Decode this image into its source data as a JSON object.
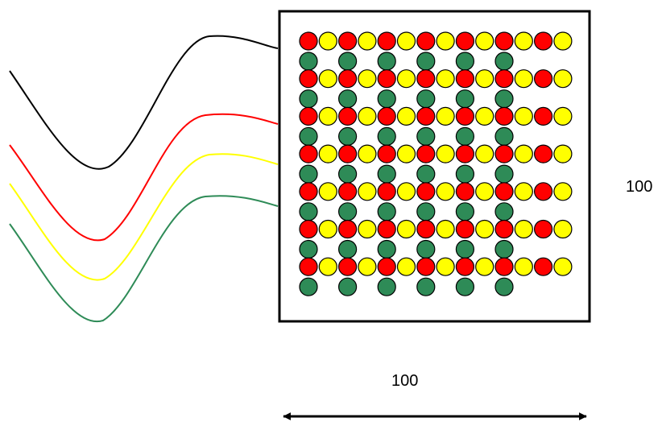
{
  "labels": {
    "height": "100",
    "width": "100"
  },
  "colors": {
    "background": "#ffffff",
    "frame": "#000000",
    "dot_red": "#ff0000",
    "dot_yellow": "#ffff00",
    "dot_green": "#2e8b57",
    "wave_black": "#000000",
    "wave_red": "#ff0000",
    "wave_yellow": "#ffff00",
    "wave_green": "#2e8b57",
    "dot_outline": "#000000"
  },
  "grid": {
    "colored_rows": 7,
    "green_rows": 7,
    "dots_per_colored_row": 14,
    "dots_per_green_row": 6,
    "colored_row_pattern": [
      "red",
      "yellow"
    ]
  },
  "waves": [
    {
      "name": "black",
      "color_key": "wave_black"
    },
    {
      "name": "red",
      "color_key": "wave_red"
    },
    {
      "name": "yellow",
      "color_key": "wave_yellow"
    },
    {
      "name": "green",
      "color_key": "wave_green"
    }
  ],
  "arrow": {
    "style": "double-headed"
  }
}
